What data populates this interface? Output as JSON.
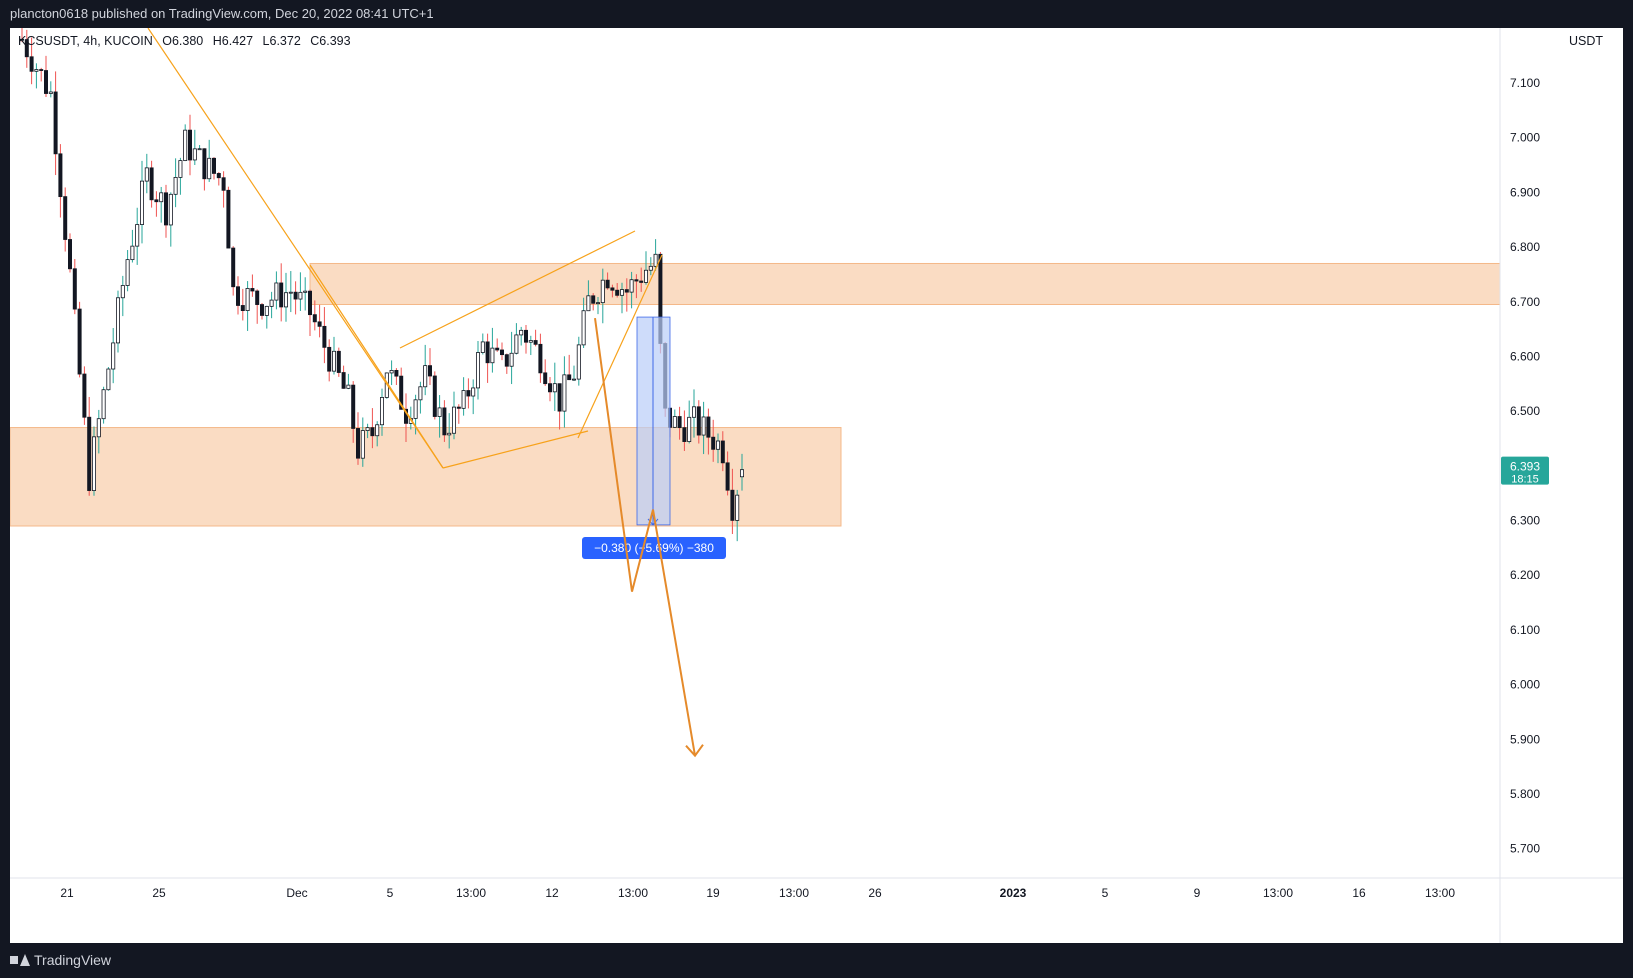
{
  "header": {
    "published_text": "plancton0618 published on TradingView.com, Dec 20, 2022 08:41 UTC+1"
  },
  "legend": {
    "symbol": "KCSUSDT, 4h, KUCOIN",
    "open": "O6.380",
    "high": "H6.427",
    "low": "L6.372",
    "close": "C6.393"
  },
  "price_axis": {
    "unit": "USDT",
    "ticks": [
      "7.100",
      "7.000",
      "6.900",
      "6.800",
      "6.700",
      "6.600",
      "6.500",
      "6.400",
      "6.300",
      "6.200",
      "6.100",
      "6.000",
      "5.900",
      "5.800",
      "5.700"
    ],
    "last_price": "6.393",
    "countdown": "18:15"
  },
  "time_axis": {
    "labels": [
      "21",
      "25",
      "Dec",
      "5",
      "13:00",
      "12",
      "13:00",
      "19",
      "13:00",
      "26",
      "2023",
      "5",
      "9",
      "13:00",
      "16",
      "13:00"
    ]
  },
  "measure": {
    "label": "−0.380 (−5.69%) −380"
  },
  "footer": {
    "brand": "TradingView"
  },
  "colors": {
    "up": "#26a69a",
    "down": "#ef5350",
    "zone": "#f9d6b8",
    "drawing": "#f7a21b",
    "arrow": "#e58a2a",
    "measure_fill": "#b9cdf8",
    "measure_label": "#2962ff",
    "price_badge": "#26a69a"
  },
  "chart_data": {
    "type": "candlestick",
    "symbol": "KCSUSDT",
    "interval": "4h",
    "exchange": "KUCOIN",
    "ohlc_last": {
      "open": 6.38,
      "high": 6.427,
      "low": 6.372,
      "close": 6.393
    },
    "ylim": [
      5.63,
      7.2
    ],
    "path_anchors": [
      {
        "i": 0,
        "p": 7.18
      },
      {
        "i": 6,
        "p": 7.08
      },
      {
        "i": 10,
        "p": 6.75
      },
      {
        "i": 14,
        "p": 6.38
      },
      {
        "i": 18,
        "p": 6.58
      },
      {
        "i": 22,
        "p": 6.78
      },
      {
        "i": 26,
        "p": 6.93
      },
      {
        "i": 30,
        "p": 6.87
      },
      {
        "i": 34,
        "p": 6.99
      },
      {
        "i": 38,
        "p": 6.95
      },
      {
        "i": 42,
        "p": 6.92
      },
      {
        "i": 44,
        "p": 6.72
      },
      {
        "i": 50,
        "p": 6.7
      },
      {
        "i": 56,
        "p": 6.72
      },
      {
        "i": 60,
        "p": 6.68
      },
      {
        "i": 64,
        "p": 6.6
      },
      {
        "i": 68,
        "p": 6.52
      },
      {
        "i": 70,
        "p": 6.43
      },
      {
        "i": 73,
        "p": 6.46
      },
      {
        "i": 76,
        "p": 6.58
      },
      {
        "i": 80,
        "p": 6.5
      },
      {
        "i": 84,
        "p": 6.56
      },
      {
        "i": 88,
        "p": 6.47
      },
      {
        "i": 92,
        "p": 6.51
      },
      {
        "i": 96,
        "p": 6.62
      },
      {
        "i": 100,
        "p": 6.58
      },
      {
        "i": 104,
        "p": 6.65
      },
      {
        "i": 108,
        "p": 6.6
      },
      {
        "i": 112,
        "p": 6.52
      },
      {
        "i": 115,
        "p": 6.57
      },
      {
        "i": 118,
        "p": 6.7
      },
      {
        "i": 122,
        "p": 6.75
      },
      {
        "i": 126,
        "p": 6.72
      },
      {
        "i": 130,
        "p": 6.76
      },
      {
        "i": 132,
        "p": 6.77
      },
      {
        "i": 133,
        "p": 6.61
      },
      {
        "i": 134,
        "p": 6.49
      },
      {
        "i": 137,
        "p": 6.47
      },
      {
        "i": 140,
        "p": 6.48
      },
      {
        "i": 144,
        "p": 6.45
      },
      {
        "i": 146,
        "p": 6.43
      },
      {
        "i": 148,
        "p": 6.33
      },
      {
        "i": 150,
        "p": 6.393
      }
    ],
    "zones": [
      {
        "top": 6.77,
        "bottom": 6.695
      },
      {
        "top": 6.47,
        "bottom": 6.29
      }
    ],
    "measure": {
      "from": 6.672,
      "to": 6.292,
      "change": -0.38,
      "percent": -5.69,
      "ticks": -380
    },
    "projection_path": [
      6.67,
      6.17,
      6.32,
      5.87
    ]
  }
}
